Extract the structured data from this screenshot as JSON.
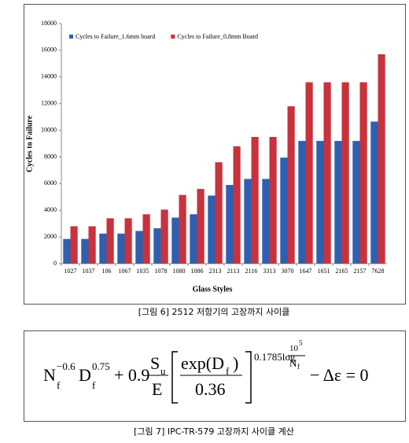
{
  "chart_data": {
    "type": "bar",
    "ylabel": "Cycles to Failure",
    "xlabel": "Glass Styles",
    "categories": [
      "1027",
      "1037",
      "106",
      "1067",
      "1035",
      "1078",
      "1080",
      "1086",
      "2313",
      "2113",
      "2116",
      "3313",
      "3070",
      "1647",
      "1651",
      "2165",
      "2157",
      "7628"
    ],
    "series": [
      {
        "name": "Cycles to Failure_1.6mm board",
        "color": "#2f5fb0",
        "values": [
          1850,
          1850,
          2250,
          2250,
          2450,
          2650,
          3450,
          3700,
          5100,
          5900,
          6350,
          6350,
          7950,
          9200,
          9200,
          9200,
          9200,
          10650
        ]
      },
      {
        "name": "Cycles to Failure_0.8mm Board",
        "color": "#c8323c",
        "values": [
          2800,
          2800,
          3400,
          3400,
          3700,
          4050,
          5150,
          5600,
          7600,
          8800,
          9500,
          9500,
          11800,
          13600,
          13600,
          13600,
          13600,
          15700
        ]
      }
    ],
    "ylim": [
      0,
      18000
    ],
    "yticks": [
      0,
      2000,
      4000,
      6000,
      8000,
      10000,
      12000,
      14000,
      16000,
      18000
    ],
    "grid": false,
    "legend": "upper-left"
  },
  "figure6_caption": "[그림 6] 2512 저항기의 고장까지 사이클",
  "equation": {
    "n1": "N",
    "n1_sub": "f",
    "n1_sup": "−0.6",
    "d": "D",
    "d_sub": "f",
    "d_sup": "0.75",
    "plus": "+ 0.9",
    "s": "S",
    "s_sub": "u",
    "e": "E",
    "exp": "exp(D",
    "exp_sub": "f",
    "exp_close": ")",
    "den": "0.36",
    "power": "0.1785log",
    "ten": "10",
    "ten_sup": "5",
    "n2": "N",
    "n2_sub": "f",
    "tail": "− Δε = 0"
  },
  "figure7_caption": "[그림 7] IPC-TR-579 고장까지 사이클 계산"
}
